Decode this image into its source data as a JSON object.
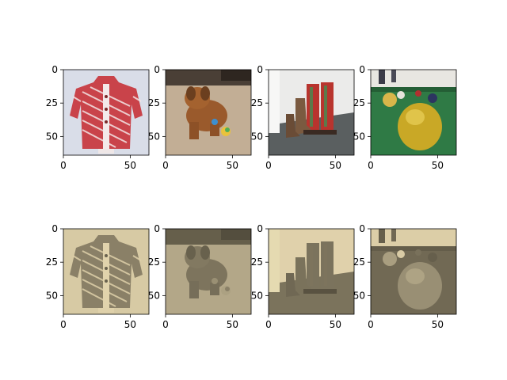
{
  "chart_data": {
    "type": "image-grid",
    "rows": 2,
    "cols": 4,
    "xlim": [
      0,
      64
    ],
    "ylim": [
      64,
      0
    ],
    "xticks": [
      0,
      50
    ],
    "yticks": [
      0,
      25,
      50
    ],
    "grid": false,
    "panels": [
      {
        "row": 0,
        "col": 0,
        "subject": "red-white striped knit cardigan on hanger",
        "palette": [
          "#d9dde8",
          "#c9434a",
          "#f0e6e6"
        ]
      },
      {
        "row": 0,
        "col": 1,
        "subject": "brown puppy lying on carpet with toys",
        "palette": [
          "#b9a58c",
          "#9a5a2c",
          "#6b3f1f"
        ]
      },
      {
        "row": 0,
        "col": 2,
        "subject": "pair of red cowboy boots beside white wall",
        "palette": [
          "#e9e9e7",
          "#b8342e",
          "#555a5c"
        ]
      },
      {
        "row": 0,
        "col": 3,
        "subject": "yellow billiard ball on green pool table",
        "palette": [
          "#2f7a45",
          "#c9a826",
          "#e6e4df"
        ]
      },
      {
        "row": 1,
        "col": 0,
        "subject": "sepia version of cardigan",
        "palette": [
          "#d4cfc0",
          "#8a8273",
          "#b5ad9c"
        ]
      },
      {
        "row": 1,
        "col": 1,
        "subject": "sepia version of puppy",
        "palette": [
          "#b7b09f",
          "#6e685c",
          "#4c473f"
        ]
      },
      {
        "row": 1,
        "col": 2,
        "subject": "sepia version of boots",
        "palette": [
          "#c8c2b3",
          "#7a7366",
          "#57524a"
        ]
      },
      {
        "row": 1,
        "col": 3,
        "subject": "sepia version of billiard ball",
        "palette": [
          "#8d8676",
          "#a8a08e",
          "#c9c2b1"
        ]
      }
    ]
  }
}
